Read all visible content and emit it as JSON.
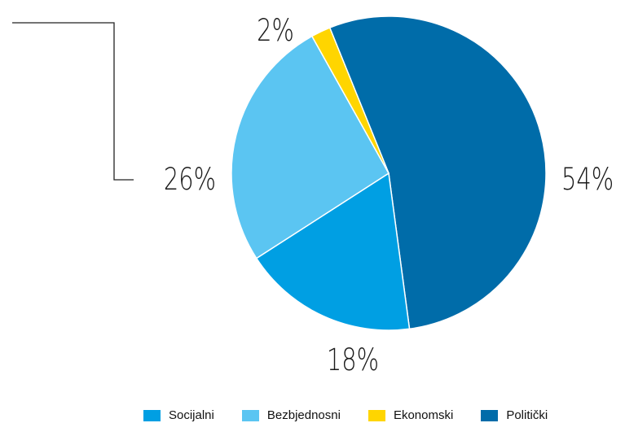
{
  "chart_data": {
    "type": "pie",
    "categories": [
      "Politički",
      "Socijalni",
      "Bezbjednosni",
      "Ekonomski"
    ],
    "values": [
      54,
      18,
      26,
      2
    ],
    "data_labels": [
      "54%",
      "18%",
      "26%",
      "2%"
    ],
    "colors": {
      "Socijalni": "#009fe3",
      "Bezbjednosni": "#5bc5f2",
      "Ekonomski": "#ffd500",
      "Politički": "#006ca9"
    },
    "legend_order": [
      "Socijalni",
      "Bezbjednosni",
      "Ekonomski",
      "Politički"
    ],
    "legend_position": "bottom"
  }
}
